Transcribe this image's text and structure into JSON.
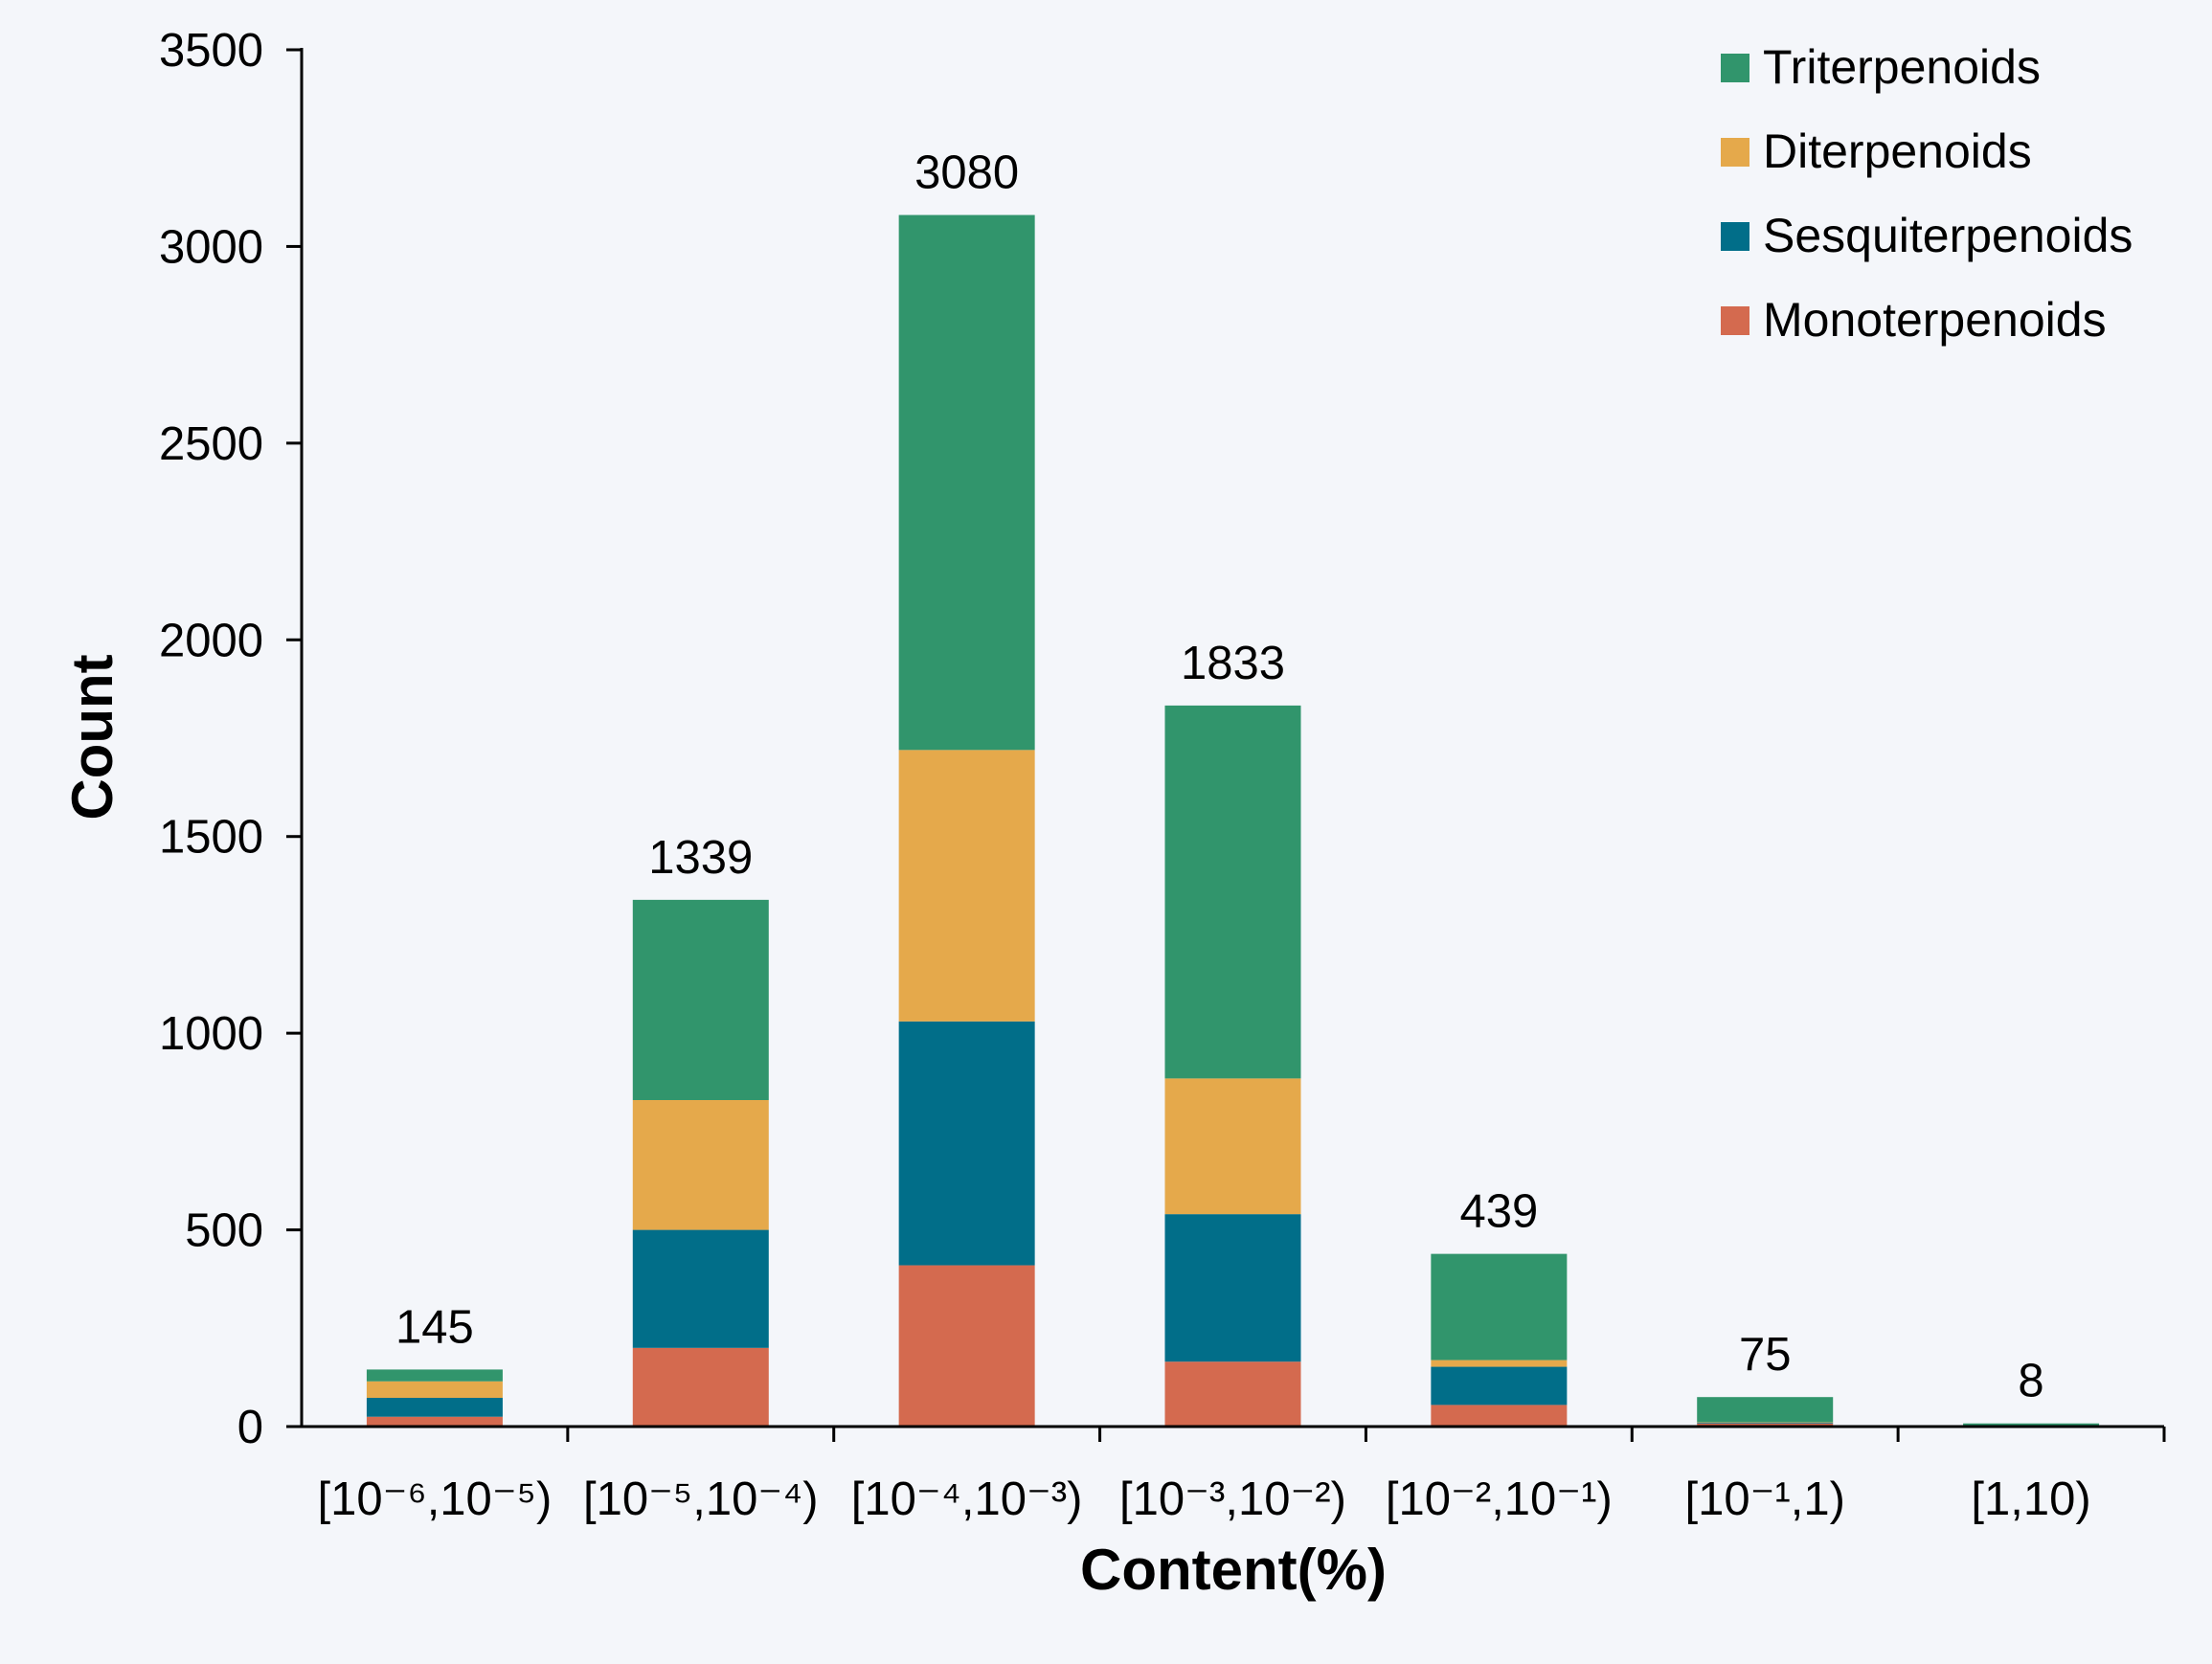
{
  "chart_data": {
    "type": "bar",
    "stacked": true,
    "xlabel": "Content(%)",
    "ylabel": "Count",
    "ylim": [
      0,
      3500
    ],
    "yticks": [
      0,
      500,
      1000,
      1500,
      2000,
      2500,
      3000,
      3500
    ],
    "grid": false,
    "legend_position": "top-right",
    "categories": [
      "[10⁻⁶,10⁻⁵)",
      "[10⁻⁵,10⁻⁴)",
      "[10⁻⁴,10⁻³)",
      "[10⁻³,10⁻²)",
      "[10⁻²,10⁻¹)",
      "[10⁻¹,1)",
      "[1,10)"
    ],
    "totals": [
      145,
      1339,
      3080,
      1833,
      439,
      75,
      8
    ],
    "series": [
      {
        "name": "Monoterpenoids",
        "color": "#d46a4f",
        "values": [
          25,
          200,
          410,
          165,
          55,
          8,
          2
        ]
      },
      {
        "name": "Sesquiterpenoids",
        "color": "#016e89",
        "values": [
          48,
          300,
          620,
          375,
          97,
          2,
          1
        ]
      },
      {
        "name": "Diterpenoids",
        "color": "#e5a94b",
        "values": [
          42,
          330,
          690,
          345,
          17,
          1,
          0
        ]
      },
      {
        "name": "Triterpenoids",
        "color": "#31956c",
        "values": [
          30,
          509,
          1360,
          948,
          270,
          64,
          5
        ]
      }
    ],
    "legend_order": [
      "Triterpenoids",
      "Diterpenoids",
      "Sesquiterpenoids",
      "Monoterpenoids"
    ],
    "axis_color": "#000000",
    "background": "#f4f6fa"
  }
}
